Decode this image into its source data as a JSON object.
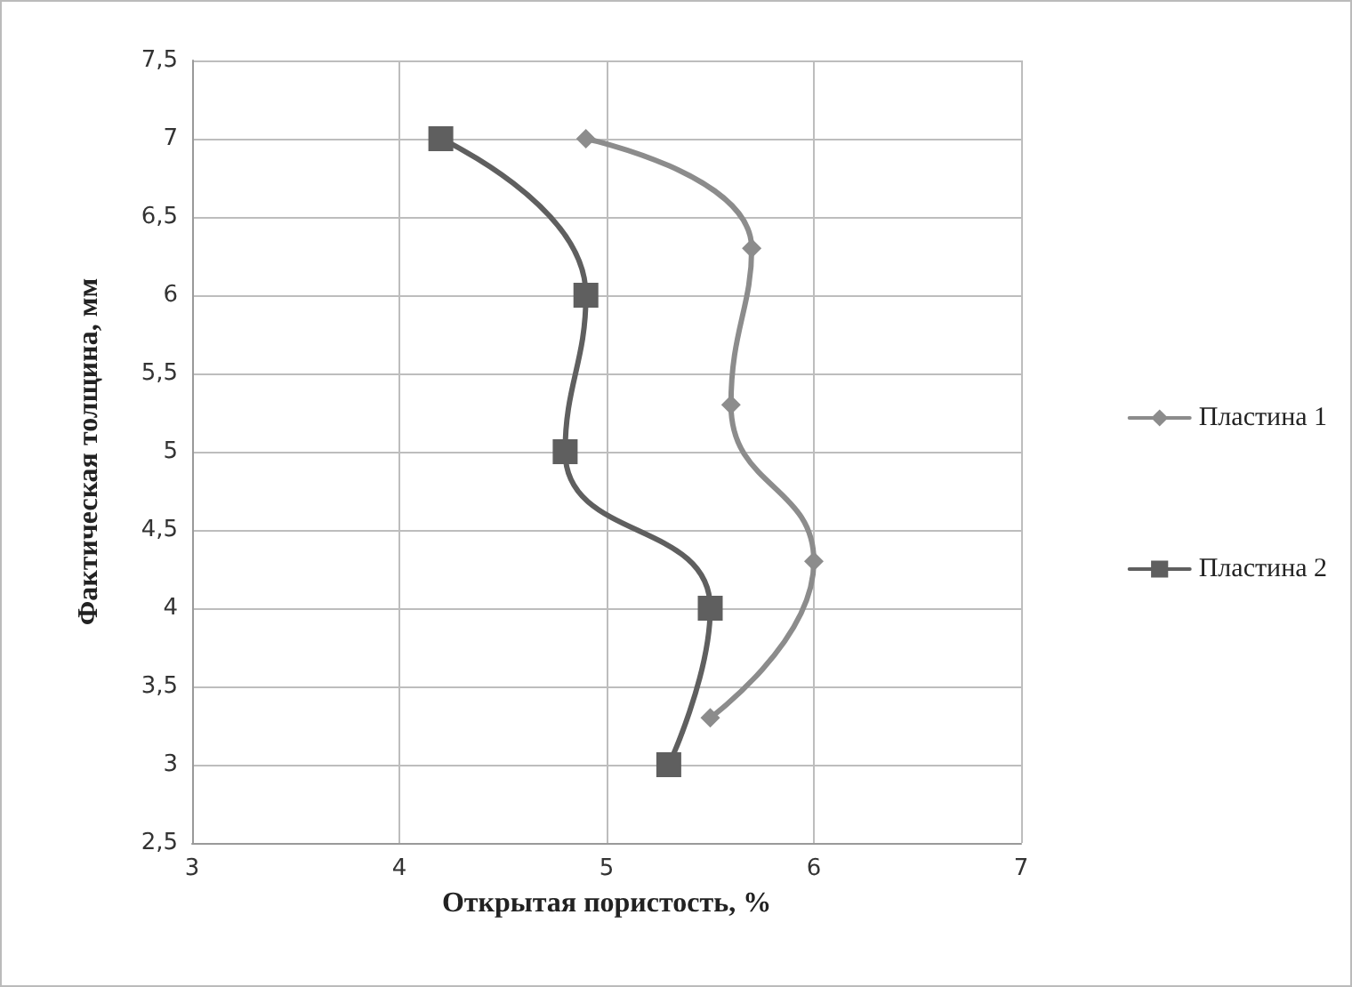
{
  "chart_data": {
    "type": "line",
    "xlabel": "Открытая пористость, %",
    "ylabel": "Фактическая толщина, мм",
    "xlim": [
      3,
      7
    ],
    "xticks": [
      3,
      4,
      5,
      6,
      7
    ],
    "ylim": [
      2.5,
      7.5
    ],
    "yticks": [
      {
        "value": 2.5,
        "label": "2,5"
      },
      3,
      {
        "value": 3.5,
        "label": "3,5"
      },
      4,
      {
        "value": 4.5,
        "label": "4,5"
      },
      5,
      {
        "value": 5.5,
        "label": "5,5"
      },
      6,
      {
        "value": 6.5,
        "label": "6,5"
      },
      7,
      {
        "value": 7.5,
        "label": "7,5"
      }
    ],
    "grid": true,
    "legend": "right",
    "line_style": "solid",
    "series": [
      {
        "name": "Пластина 1",
        "color": "#8c8c8c",
        "marker": "diamond",
        "x": [
          4.9,
          5.7,
          5.6,
          6.0,
          5.5
        ],
        "values": [
          7,
          6.3,
          5.3,
          4.3,
          3.3
        ]
      },
      {
        "name": "Пластина 2",
        "color": "#5f5f5f",
        "marker": "square",
        "x": [
          4.2,
          4.9,
          4.8,
          5.5,
          5.3
        ],
        "values": [
          7,
          6,
          5,
          4,
          3
        ]
      }
    ]
  }
}
